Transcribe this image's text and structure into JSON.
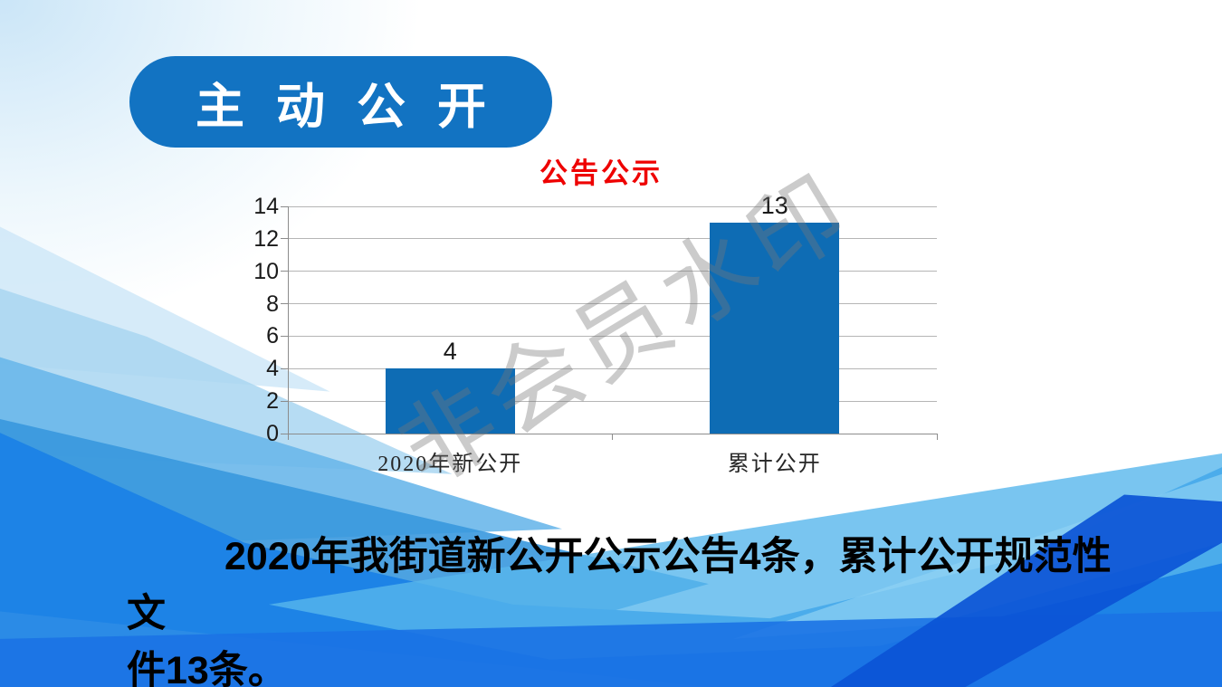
{
  "badge": {
    "label": "主 动 公 开"
  },
  "chart_data": {
    "type": "bar",
    "title": "公告公示",
    "categories": [
      "2020年新公开",
      "累计公开"
    ],
    "values": [
      4,
      13
    ],
    "data_labels": [
      "4",
      "13"
    ],
    "y_ticks": [
      0,
      2,
      4,
      6,
      8,
      10,
      12,
      14
    ],
    "ylim": [
      0,
      14
    ],
    "grid": true,
    "legend": "none",
    "bar_color": "#0e6cb4",
    "title_color": "#ee0000"
  },
  "watermark": {
    "text": "非会员水印"
  },
  "summary": {
    "line1": "2020年我街道新公开公示公告4条，累计公开规范性文",
    "line2": "件13条。",
    "full_text": "2020年我街道新公开公示公告4条，累计公开规范性文件13条。"
  },
  "colors": {
    "badge_blue": "#1273c2",
    "bar_blue": "#0e6cb4",
    "title_red": "#ee0000",
    "wave_bright_blue": "#1d83e6",
    "wave_dark_blue": "#0b54d6",
    "wave_light_cyan": "#58b6ec"
  }
}
